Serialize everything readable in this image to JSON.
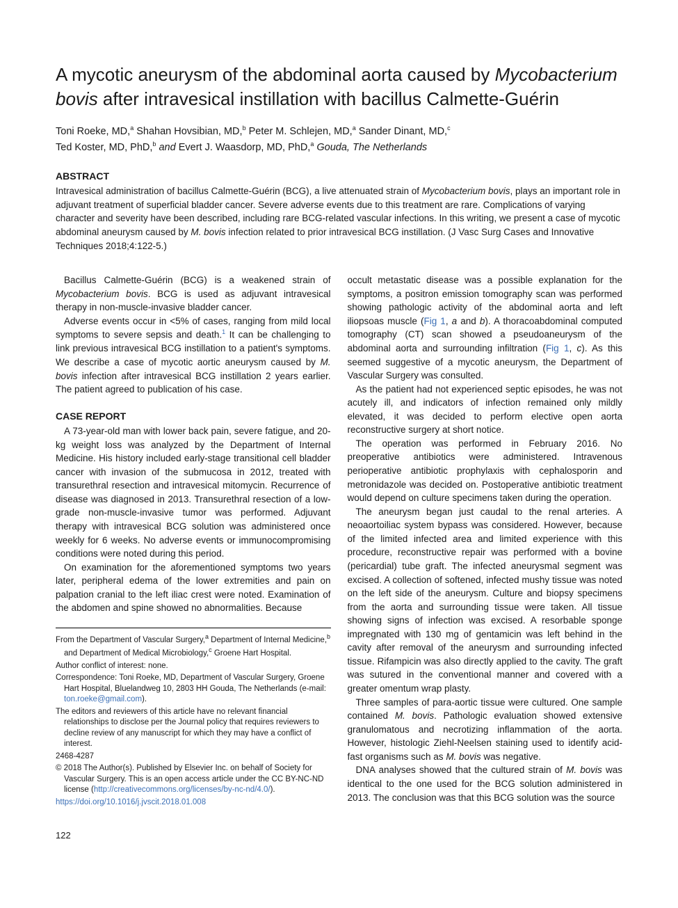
{
  "title_pre": "A mycotic aneurysm of the abdominal aorta caused by ",
  "title_italic": "Mycobacterium bovis",
  "title_post": " after intravesical instillation with bacillus Calmette-Guérin",
  "authors": {
    "a1": "Toni Roeke, MD,",
    "a1_sup": "a",
    "a2": "Shahan Hovsibian, MD,",
    "a2_sup": "b",
    "a3": "Peter M. Schlejen, MD,",
    "a3_sup": "a",
    "a4": "Sander Dinant, MD,",
    "a4_sup": "c",
    "a5": "Ted Koster, MD, PhD,",
    "a5_sup": "b",
    "and": "and ",
    "a6": "Evert J. Waasdorp, MD, PhD,",
    "a6_sup": "a",
    "location": "Gouda, The Netherlands"
  },
  "abstract_head": "ABSTRACT",
  "abstract": {
    "p1a": "Intravesical administration of bacillus Calmette-Guérin (BCG), a live attenuated strain of ",
    "p1b": "Mycobacterium bovis",
    "p1c": ", plays an important role in adjuvant treatment of superficial bladder cancer. Severe adverse events due to this treatment are rare. Complications of varying character and severity have been described, including rare BCG-related vascular infections. In this writing, we present a case of mycotic abdominal aneurysm caused by ",
    "p1d": "M. bovis",
    "p1e": " infection related to prior intravesical BCG instillation. (J Vasc Surg Cases and Innovative Techniques 2018;4:122-5.)"
  },
  "left": {
    "p1a": "Bacillus Calmette-Guérin (BCG) is a weakened strain of ",
    "p1b": "Mycobacterium bovis",
    "p1c": ". BCG is used as adjuvant intravesical therapy in non-muscle-invasive bladder cancer.",
    "p2a": "Adverse events occur in <5% of cases, ranging from mild local symptoms to severe sepsis and death.",
    "p2ref": "1",
    "p2b": " It can be challenging to link previous intravesical BCG instillation to a patient's symptoms. We describe a case of mycotic aortic aneurysm caused by ",
    "p2c": "M. bovis",
    "p2d": " infection after intravesical BCG instillation 2 years earlier. The patient agreed to publication of his case.",
    "case_head": "CASE REPORT",
    "p3": "A 73-year-old man with lower back pain, severe fatigue, and 20-kg weight loss was analyzed by the Department of Internal Medicine. His history included early-stage transitional cell bladder cancer with invasion of the submucosa in 2012, treated with transurethral resection and intravesical mitomycin. Recurrence of disease was diagnosed in 2013. Transurethral resection of a low-grade non-muscle-invasive tumor was performed. Adjuvant therapy with intravesical BCG solution was administered once weekly for 6 weeks. No adverse events or immunocompromising conditions were noted during this period.",
    "p4": "On examination for the aforementioned symptoms two years later, peripheral edema of the lower extremities and pain on palpation cranial to the left iliac crest were noted. Examination of the abdomen and spine showed no abnormalities. Because"
  },
  "right": {
    "p1a": "occult metastatic disease was a possible explanation for the symptoms, a positron emission tomography scan was performed showing pathologic activity of the abdominal aorta and left iliopsoas muscle (",
    "p1fig1": "Fig 1",
    "p1b": ", ",
    "p1i1": "a",
    "p1c": " and ",
    "p1i2": "b",
    "p1d": "). A thoracoabdominal computed tomography (CT) scan showed a pseudoaneurysm of the abdominal aorta and surrounding infiltration (",
    "p1fig2": "Fig 1",
    "p1e": ", ",
    "p1i3": "c",
    "p1f": "). As this seemed suggestive of a mycotic aneurysm, the Department of Vascular Surgery was consulted.",
    "p2": "As the patient had not experienced septic episodes, he was not acutely ill, and indicators of infection remained only mildly elevated, it was decided to perform elective open aorta reconstructive surgery at short notice.",
    "p3": "The operation was performed in February 2016. No preoperative antibiotics were administered. Intravenous perioperative antibiotic prophylaxis with cephalosporin and metronidazole was decided on. Postoperative antibiotic treatment would depend on culture specimens taken during the operation.",
    "p4": "The aneurysm began just caudal to the renal arteries. A neoaortoiliac system bypass was considered. However, because of the limited infected area and limited experience with this procedure, reconstructive repair was performed with a bovine (pericardial) tube graft. The infected aneurysmal segment was excised. A collection of softened, infected mushy tissue was noted on the left side of the aneurysm. Culture and biopsy specimens from the aorta and surrounding tissue were taken. All tissue showing signs of infection was excised. A resorbable sponge impregnated with 130 mg of gentamicin was left behind in the cavity after removal of the aneurysm and surrounding infected tissue. Rifampicin was also directly applied to the cavity. The graft was sutured in the conventional manner and covered with a greater omentum wrap plasty.",
    "p5a": "Three samples of para-aortic tissue were cultured. One sample contained ",
    "p5b": "M. bovis",
    "p5c": ". Pathologic evaluation showed extensive granulomatous and necrotizing inflammation of the aorta. However, histologic Ziehl-Neelsen staining used to identify acid-fast organisms such as ",
    "p5d": "M. bovis",
    "p5e": " was negative.",
    "p6a": "DNA analyses showed that the cultured strain of ",
    "p6b": "M. bovis",
    "p6c": " was identical to the one used for the BCG solution administered in 2013. The conclusion was that this BCG solution was the source"
  },
  "footnotes": {
    "f1a": "From the Department of Vascular Surgery,",
    "f1s1": "a",
    "f1b": " Department of Internal Medicine,",
    "f1s2": "b",
    "f1c": " and Department of Medical Microbiology,",
    "f1s3": "c",
    "f1d": " Groene Hart Hospital.",
    "f2": "Author conflict of interest: none.",
    "f3a": "Correspondence: Toni Roeke, MD, Department of Vascular Surgery, Groene Hart Hospital, Bluelandweg 10, 2803 HH Gouda, The Netherlands (e-mail: ",
    "f3link": "ton.roeke@gmail.com",
    "f3b": ").",
    "f4": "The editors and reviewers of this article have no relevant financial relationships to disclose per the Journal policy that requires reviewers to decline review of any manuscript for which they may have a conflict of interest.",
    "f5": "2468-4287",
    "f6a": "© 2018 The Author(s). Published by Elsevier Inc. on behalf of Society for Vascular Surgery. This is an open access article under the CC BY-NC-ND license (",
    "f6link": "http://creativecommons.org/licenses/by-nc-nd/4.0/",
    "f6b": ").",
    "f7": "https://doi.org/10.1016/j.jvscit.2018.01.008"
  },
  "page_number": "122"
}
